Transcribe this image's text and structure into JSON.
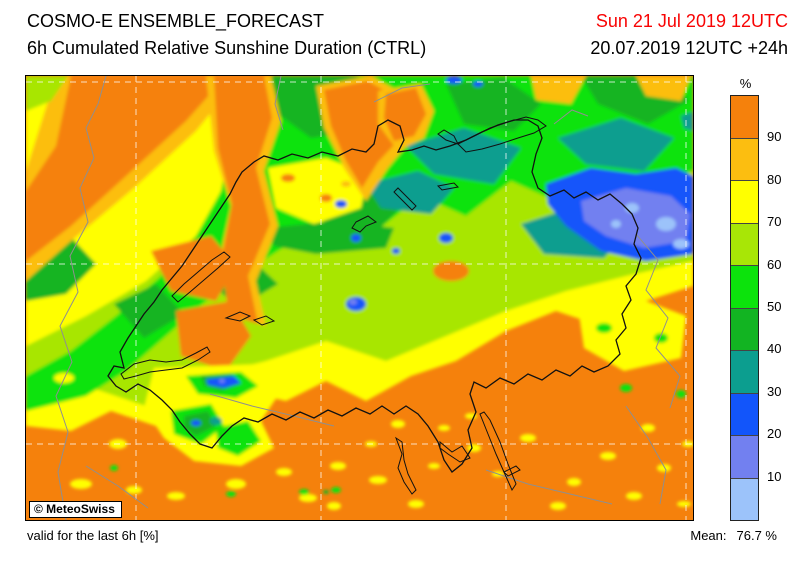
{
  "header": {
    "title": "COSMO-E ENSEMBLE_FORECAST",
    "subtitle": "6h Cumulated Relative Sunshine Duration (CTRL)",
    "valid_time": "Sun 21 Jul 2019 12UTC",
    "run_info": "20.07.2019 12UTC +24h",
    "valid_time_color": "#f80404"
  },
  "map": {
    "copyright": "© MeteoSwiss",
    "base_color": "#f5810c",
    "region": "Switzerland and surroundings"
  },
  "legend": {
    "unit": "%",
    "bands": [
      {
        "color": "#f5810c",
        "tick": "90"
      },
      {
        "color": "#fcbe10",
        "tick": "80"
      },
      {
        "color": "#ffff00",
        "tick": "70"
      },
      {
        "color": "#a8e606",
        "tick": "60"
      },
      {
        "color": "#0ce30c",
        "tick": "50"
      },
      {
        "color": "#12b422",
        "tick": "40"
      },
      {
        "color": "#0c9e8f",
        "tick": "30"
      },
      {
        "color": "#1255fa",
        "tick": "20"
      },
      {
        "color": "#7280f0",
        "tick": "10"
      },
      {
        "color": "#9cc3fa",
        "tick": null
      }
    ]
  },
  "footer": {
    "note": "valid for the last 6h [%]",
    "mean_label": "Mean:",
    "mean_value": "76.7 %"
  }
}
